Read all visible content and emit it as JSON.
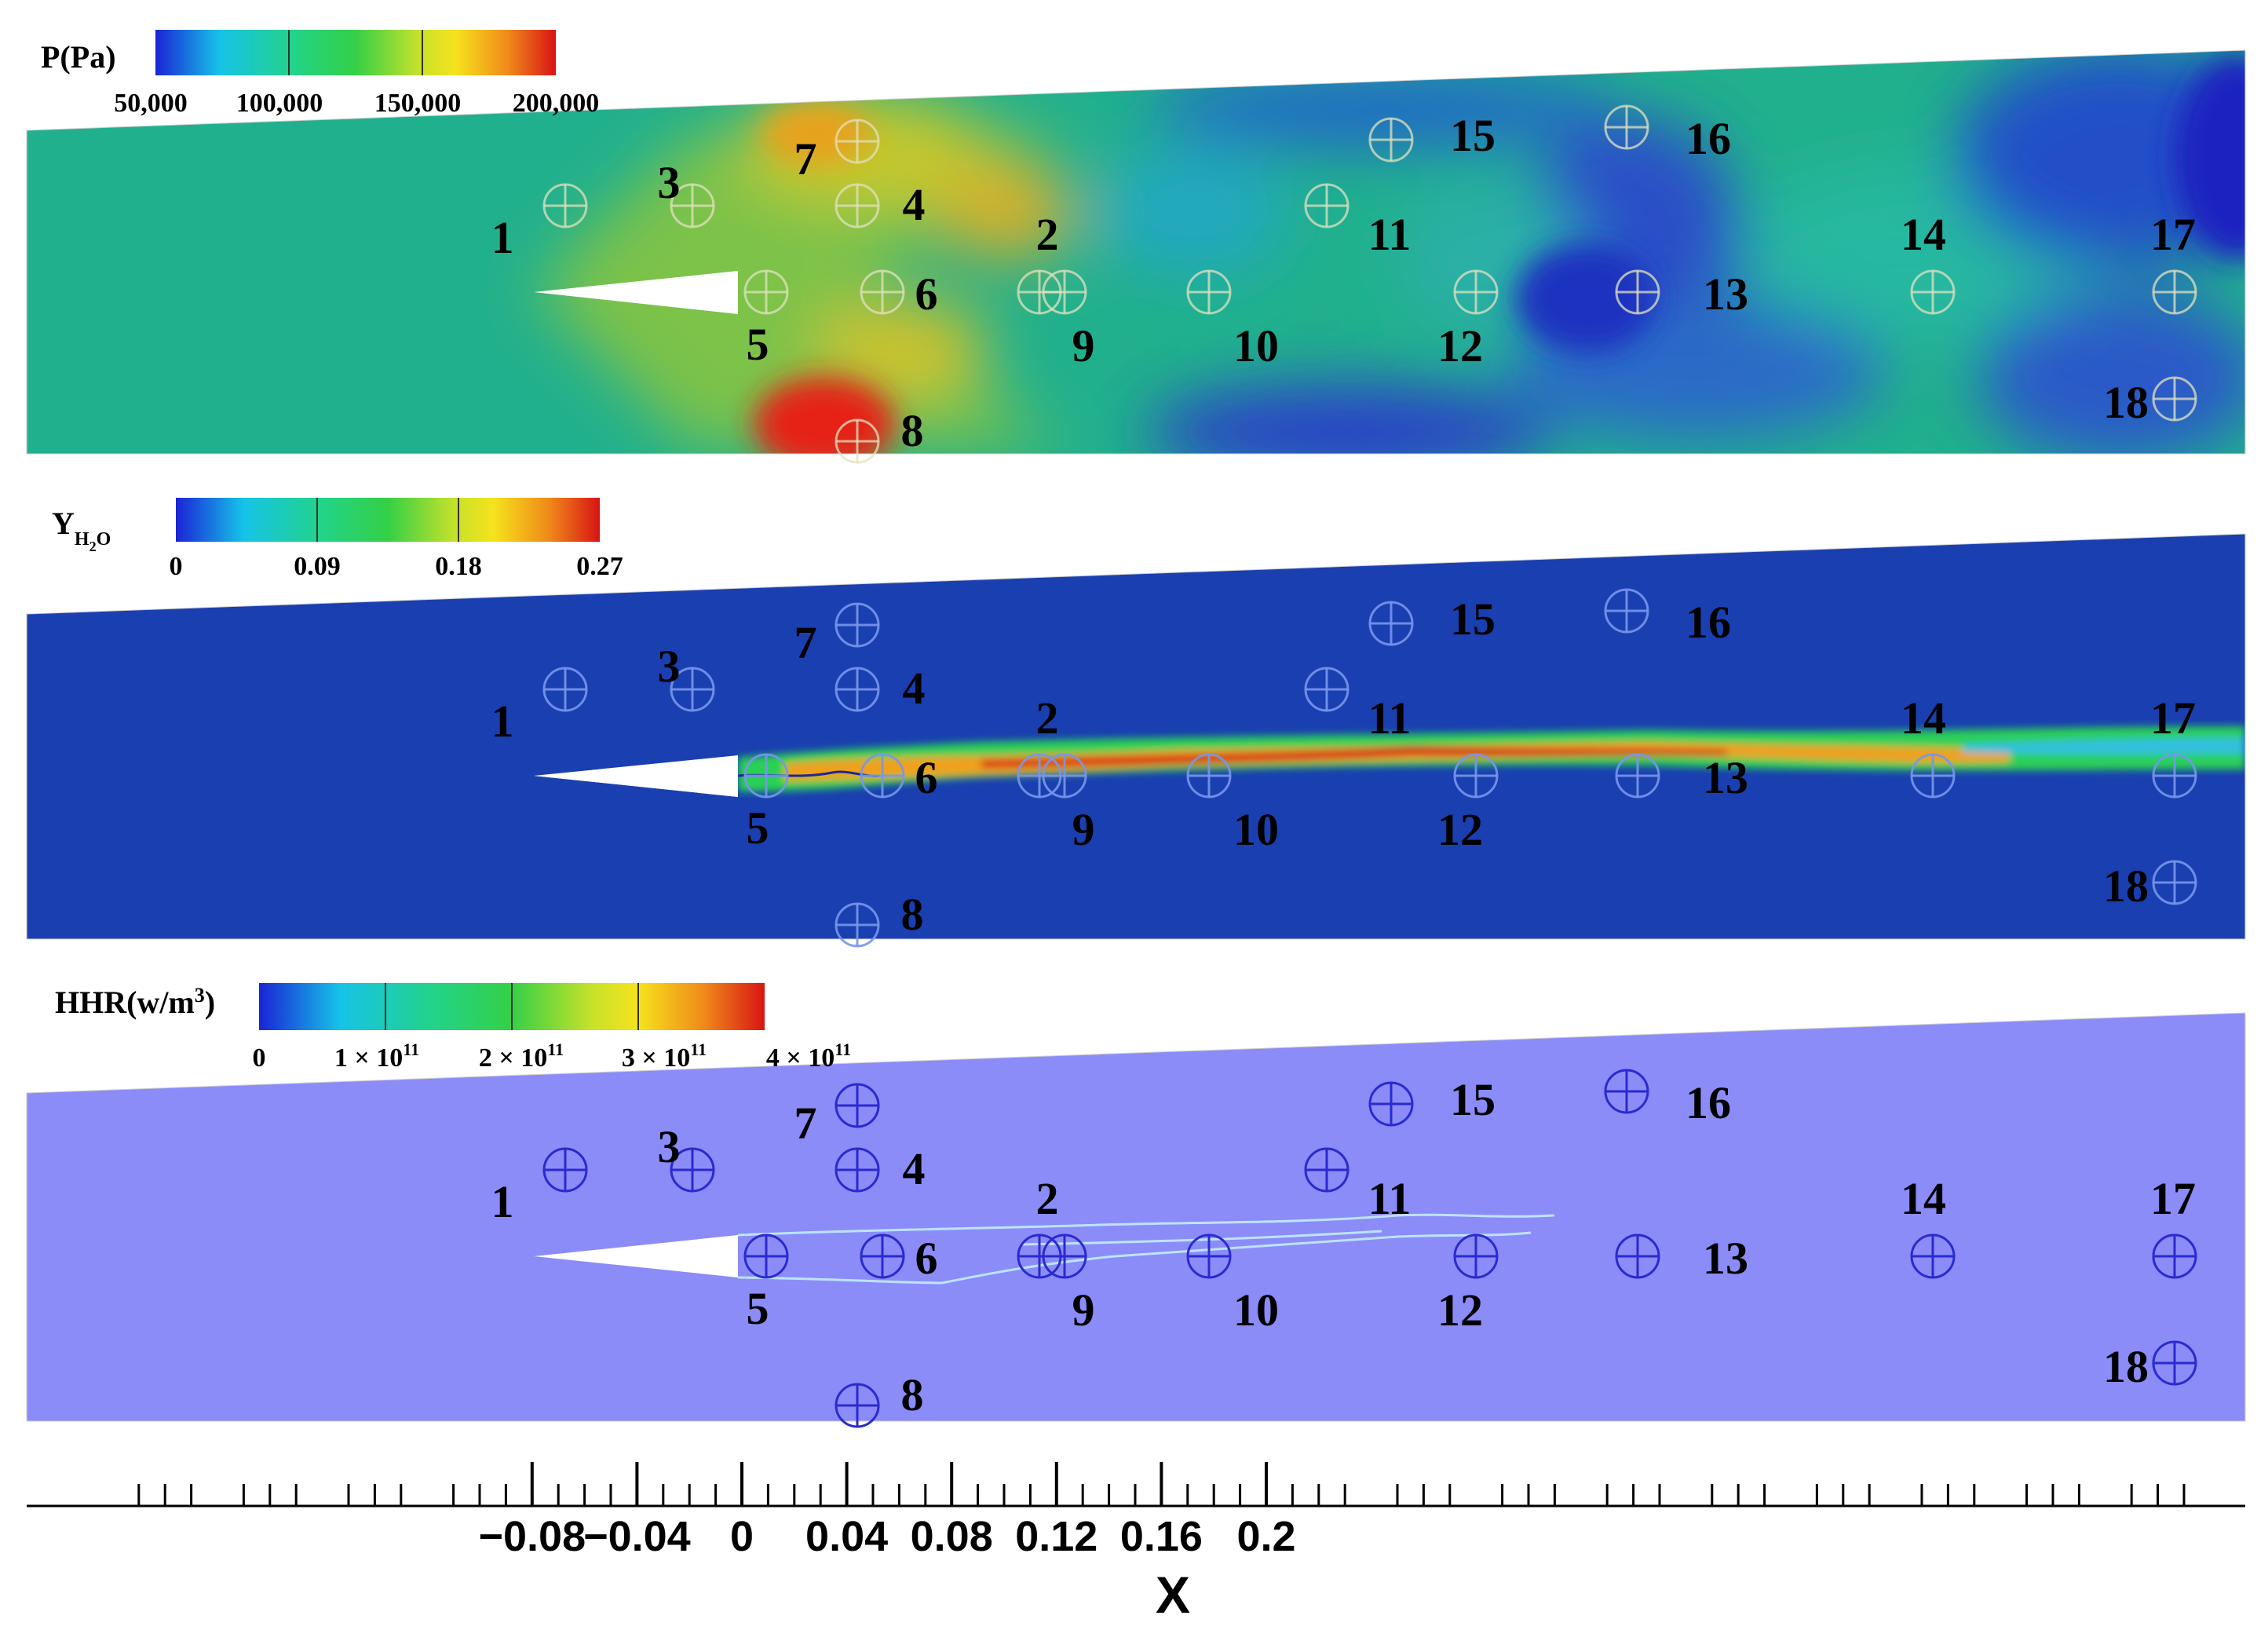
{
  "panels": [
    {
      "id": "pressure",
      "legend": {
        "title": "P(Pa)",
        "ticks": [
          "50,000",
          "100,000",
          "150,000",
          "200,000"
        ]
      },
      "colorscale": [
        "#1a24d6",
        "#16c3e8",
        "#22d38a",
        "#2bd040",
        "#c8e22a",
        "#f6e21c",
        "#f08a1a",
        "#d81414"
      ]
    },
    {
      "id": "water",
      "legend": {
        "title_main": "Y",
        "title_sub1": "H",
        "title_sub2": "2",
        "title_sub3": "O",
        "ticks": [
          "0",
          "0.09",
          "0.18",
          "0.27"
        ]
      },
      "colorscale": [
        "#1a24d6",
        "#16c3e8",
        "#22d38a",
        "#2bd040",
        "#c8e22a",
        "#f6e21c",
        "#f08a1a",
        "#d81414"
      ]
    },
    {
      "id": "heat",
      "legend": {
        "title": "HHR(w/m",
        "title_sup": "3",
        "title_close": ")",
        "ticks": [
          "0",
          "1 × 10",
          "2 × 10",
          "3 × 10",
          "4 × 10"
        ],
        "tick_sup": "11"
      },
      "colorscale": [
        "#1a24d6",
        "#16c3e8",
        "#22d38a",
        "#2bd040",
        "#c8e22a",
        "#f6e21c",
        "#f08a1a",
        "#d81414"
      ]
    }
  ],
  "probes": [
    {
      "id": "1",
      "label": "1"
    },
    {
      "id": "2",
      "label": "2"
    },
    {
      "id": "3",
      "label": "3"
    },
    {
      "id": "4",
      "label": "4"
    },
    {
      "id": "5",
      "label": "5"
    },
    {
      "id": "6",
      "label": "6"
    },
    {
      "id": "7",
      "label": "7"
    },
    {
      "id": "8",
      "label": "8"
    },
    {
      "id": "9",
      "label": "9"
    },
    {
      "id": "10",
      "label": "10"
    },
    {
      "id": "11",
      "label": "11"
    },
    {
      "id": "12",
      "label": "12"
    },
    {
      "id": "13",
      "label": "13"
    },
    {
      "id": "14",
      "label": "14"
    },
    {
      "id": "15",
      "label": "15"
    },
    {
      "id": "16",
      "label": "16"
    },
    {
      "id": "17",
      "label": "17"
    },
    {
      "id": "18",
      "label": "18"
    }
  ],
  "x_axis": {
    "label": "X",
    "ticks": [
      "−0.08",
      "−0.04",
      "0",
      "0.04",
      "0.08",
      "0.12",
      "0.16",
      "0.2"
    ]
  }
}
